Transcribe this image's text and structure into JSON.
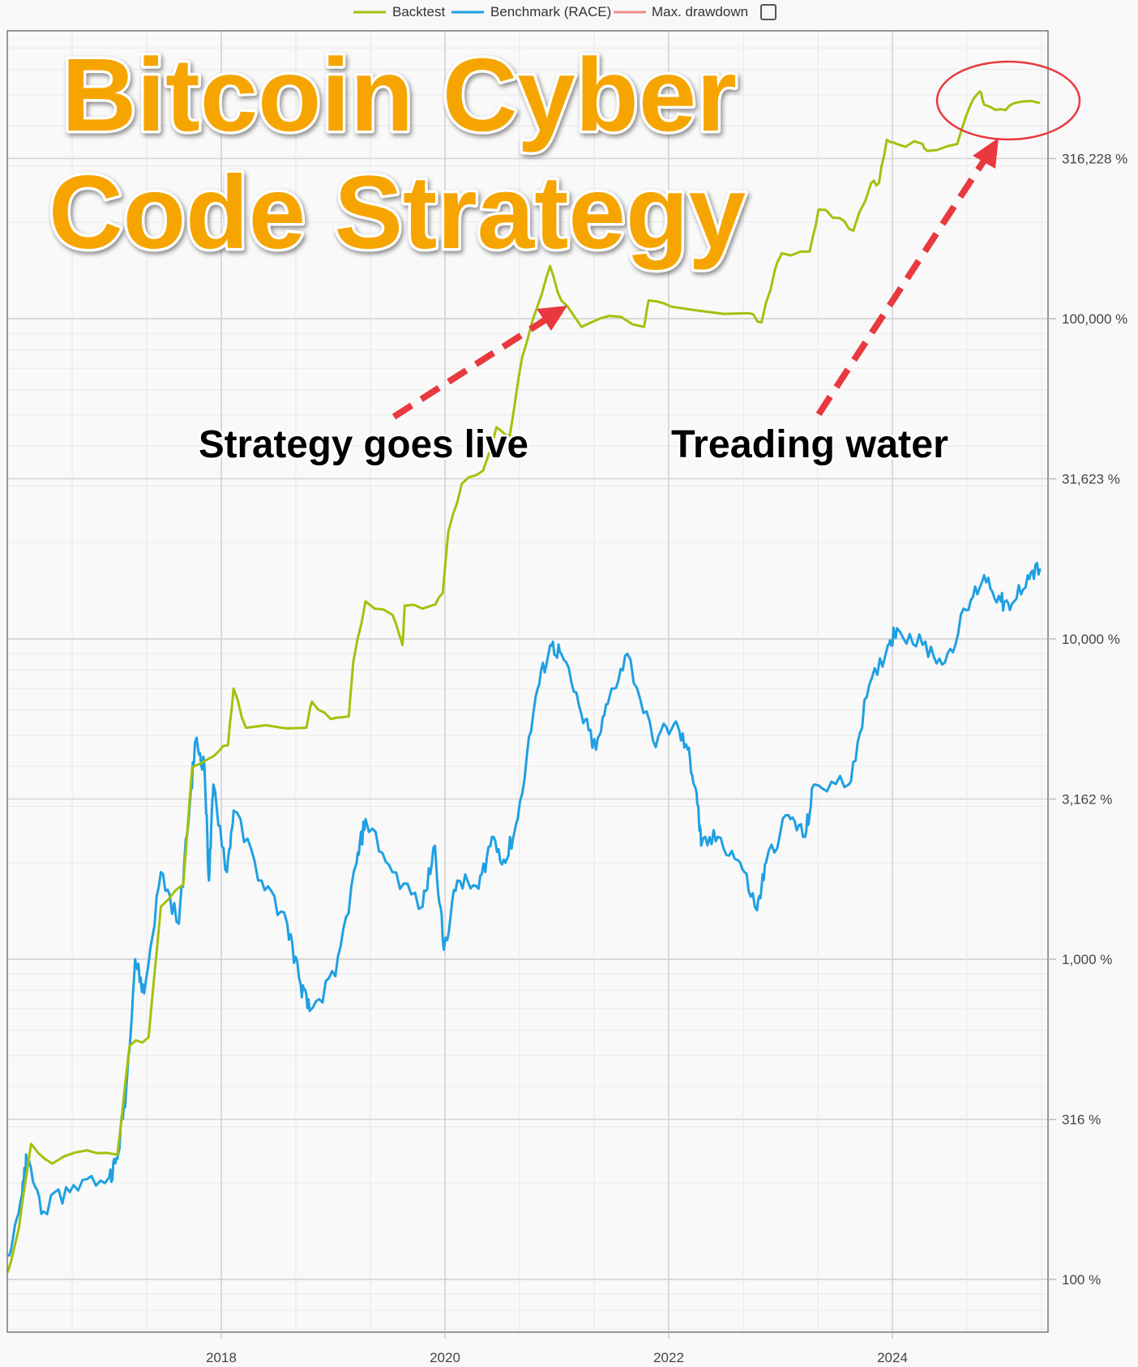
{
  "chart_data": {
    "type": "line",
    "title": "Bitcoin Cyber Code Strategy",
    "xlabel": "",
    "ylabel": "",
    "yscale": "log",
    "xlim": [
      2016.07,
      2025.4
    ],
    "ylim": [
      70,
      700000
    ],
    "y_ticks": [
      100,
      316,
      1000,
      3162,
      10000,
      31623,
      100000,
      316228
    ],
    "y_tick_labels": [
      "100 %",
      "316 %",
      "1,000 %",
      "3,162 %",
      "10,000 %",
      "31,623 %",
      "100,000 %",
      "316,228 %"
    ],
    "x_ticks": [
      2018,
      2020,
      2022,
      2024
    ],
    "x_tick_labels": [
      "2018",
      "2020",
      "2022",
      "2024"
    ],
    "grid": true,
    "legend": {
      "placement": "top-center",
      "items": [
        {
          "label": "Backtest",
          "color": "#a3c10e"
        },
        {
          "label": "Benchmark (RACE)",
          "color": "#1fa0e3"
        },
        {
          "label": "Max. drawdown",
          "color": "#f28b8b",
          "checkbox": true
        }
      ]
    },
    "series": [
      {
        "name": "Backtest",
        "color": "#a3c10e",
        "points": [
          [
            2016.09,
            105
          ],
          [
            2016.19,
            144
          ],
          [
            2016.3,
            265
          ],
          [
            2016.49,
            230
          ],
          [
            2016.8,
            253
          ],
          [
            2017.07,
            245
          ],
          [
            2017.18,
            536
          ],
          [
            2017.35,
            570
          ],
          [
            2017.46,
            1460
          ],
          [
            2017.66,
            1710
          ],
          [
            2017.74,
            3980
          ],
          [
            2017.93,
            4300
          ],
          [
            2018.06,
            4660
          ],
          [
            2018.11,
            7000
          ],
          [
            2018.22,
            5280
          ],
          [
            2018.76,
            5280
          ],
          [
            2018.81,
            6370
          ],
          [
            2018.98,
            5620
          ],
          [
            2019.14,
            5730
          ],
          [
            2019.18,
            8450
          ],
          [
            2019.29,
            13100
          ],
          [
            2019.53,
            11900
          ],
          [
            2019.62,
            9570
          ],
          [
            2019.64,
            12700
          ],
          [
            2019.88,
            12700
          ],
          [
            2019.98,
            13900
          ],
          [
            2020.03,
            21600
          ],
          [
            2020.15,
            30500
          ],
          [
            2020.34,
            33500
          ],
          [
            2020.46,
            45800
          ],
          [
            2020.58,
            43100
          ],
          [
            2020.69,
            75700
          ],
          [
            2020.83,
            110000
          ],
          [
            2020.94,
            146000
          ],
          [
            2021.04,
            114000
          ],
          [
            2021.22,
            94200
          ],
          [
            2021.47,
            102000
          ],
          [
            2021.78,
            94200
          ],
          [
            2021.82,
            114000
          ],
          [
            2022.02,
            109000
          ],
          [
            2022.72,
            104000
          ],
          [
            2022.83,
            97300
          ],
          [
            2022.95,
            142000
          ],
          [
            2023.01,
            160000
          ],
          [
            2023.26,
            162000
          ],
          [
            2023.34,
            219000
          ],
          [
            2023.53,
            206000
          ],
          [
            2023.65,
            188000
          ],
          [
            2023.81,
            265000
          ],
          [
            2023.88,
            265000
          ],
          [
            2023.95,
            362000
          ],
          [
            2024.04,
            351000
          ],
          [
            2024.27,
            351000
          ],
          [
            2024.31,
            334000
          ],
          [
            2024.58,
            351000
          ],
          [
            2024.7,
            466000
          ],
          [
            2024.78,
            512000
          ],
          [
            2024.82,
            466000
          ],
          [
            2024.97,
            451000
          ],
          [
            2025.09,
            471000
          ],
          [
            2025.32,
            471000
          ]
        ]
      },
      {
        "name": "Benchmark (RACE)",
        "color": "#1fa0e3",
        "points": [
          [
            2016.09,
            119
          ],
          [
            2016.22,
            185
          ],
          [
            2016.26,
            238
          ],
          [
            2016.41,
            163
          ],
          [
            2016.68,
            197
          ],
          [
            2017.0,
            209
          ],
          [
            2017.07,
            238
          ],
          [
            2017.15,
            392
          ],
          [
            2017.23,
            1000
          ],
          [
            2017.31,
            782
          ],
          [
            2017.46,
            1870
          ],
          [
            2017.62,
            1290
          ],
          [
            2017.72,
            3100
          ],
          [
            2017.77,
            4810
          ],
          [
            2017.85,
            3980
          ],
          [
            2017.89,
            1760
          ],
          [
            2017.93,
            3510
          ],
          [
            2018.05,
            1870
          ],
          [
            2018.11,
            2910
          ],
          [
            2018.36,
            1760
          ],
          [
            2018.59,
            1290
          ],
          [
            2018.71,
            832
          ],
          [
            2018.79,
            689
          ],
          [
            2019.02,
            885
          ],
          [
            2019.21,
            2000
          ],
          [
            2019.29,
            2740
          ],
          [
            2019.53,
            1870
          ],
          [
            2019.8,
            1460
          ],
          [
            2019.91,
            2260
          ],
          [
            2019.99,
            1070
          ],
          [
            2020.11,
            1760
          ],
          [
            2020.3,
            1660
          ],
          [
            2020.42,
            2410
          ],
          [
            2020.54,
            2000
          ],
          [
            2020.65,
            2740
          ],
          [
            2020.81,
            6580
          ],
          [
            2020.94,
            9570
          ],
          [
            2021.04,
            8990
          ],
          [
            2021.22,
            5800
          ],
          [
            2021.35,
            4510
          ],
          [
            2021.47,
            6580
          ],
          [
            2021.63,
            8990
          ],
          [
            2021.86,
            4810
          ],
          [
            2022.05,
            5440
          ],
          [
            2022.17,
            4510
          ],
          [
            2022.25,
            3300
          ],
          [
            2022.29,
            2260
          ],
          [
            2022.44,
            2410
          ],
          [
            2022.64,
            2000
          ],
          [
            2022.79,
            1420
          ],
          [
            2022.87,
            2000
          ],
          [
            2023.07,
            2820
          ],
          [
            2023.22,
            2410
          ],
          [
            2023.3,
            3510
          ],
          [
            2023.61,
            3510
          ],
          [
            2023.77,
            6580
          ],
          [
            2023.96,
            9570
          ],
          [
            2024.04,
            10800
          ],
          [
            2024.27,
            9570
          ],
          [
            2024.47,
            8450
          ],
          [
            2024.66,
            12300
          ],
          [
            2024.82,
            15800
          ],
          [
            2024.97,
            13100
          ],
          [
            2025.05,
            12300
          ],
          [
            2025.21,
            15800
          ],
          [
            2025.32,
            16600
          ]
        ]
      }
    ],
    "annotations": {
      "title_line1": "Bitcoin Cyber",
      "title_line2": "Code Strategy",
      "live_note": "Strategy goes live",
      "treading_note": "Treading water",
      "arrow_color": "#e8393f"
    }
  }
}
